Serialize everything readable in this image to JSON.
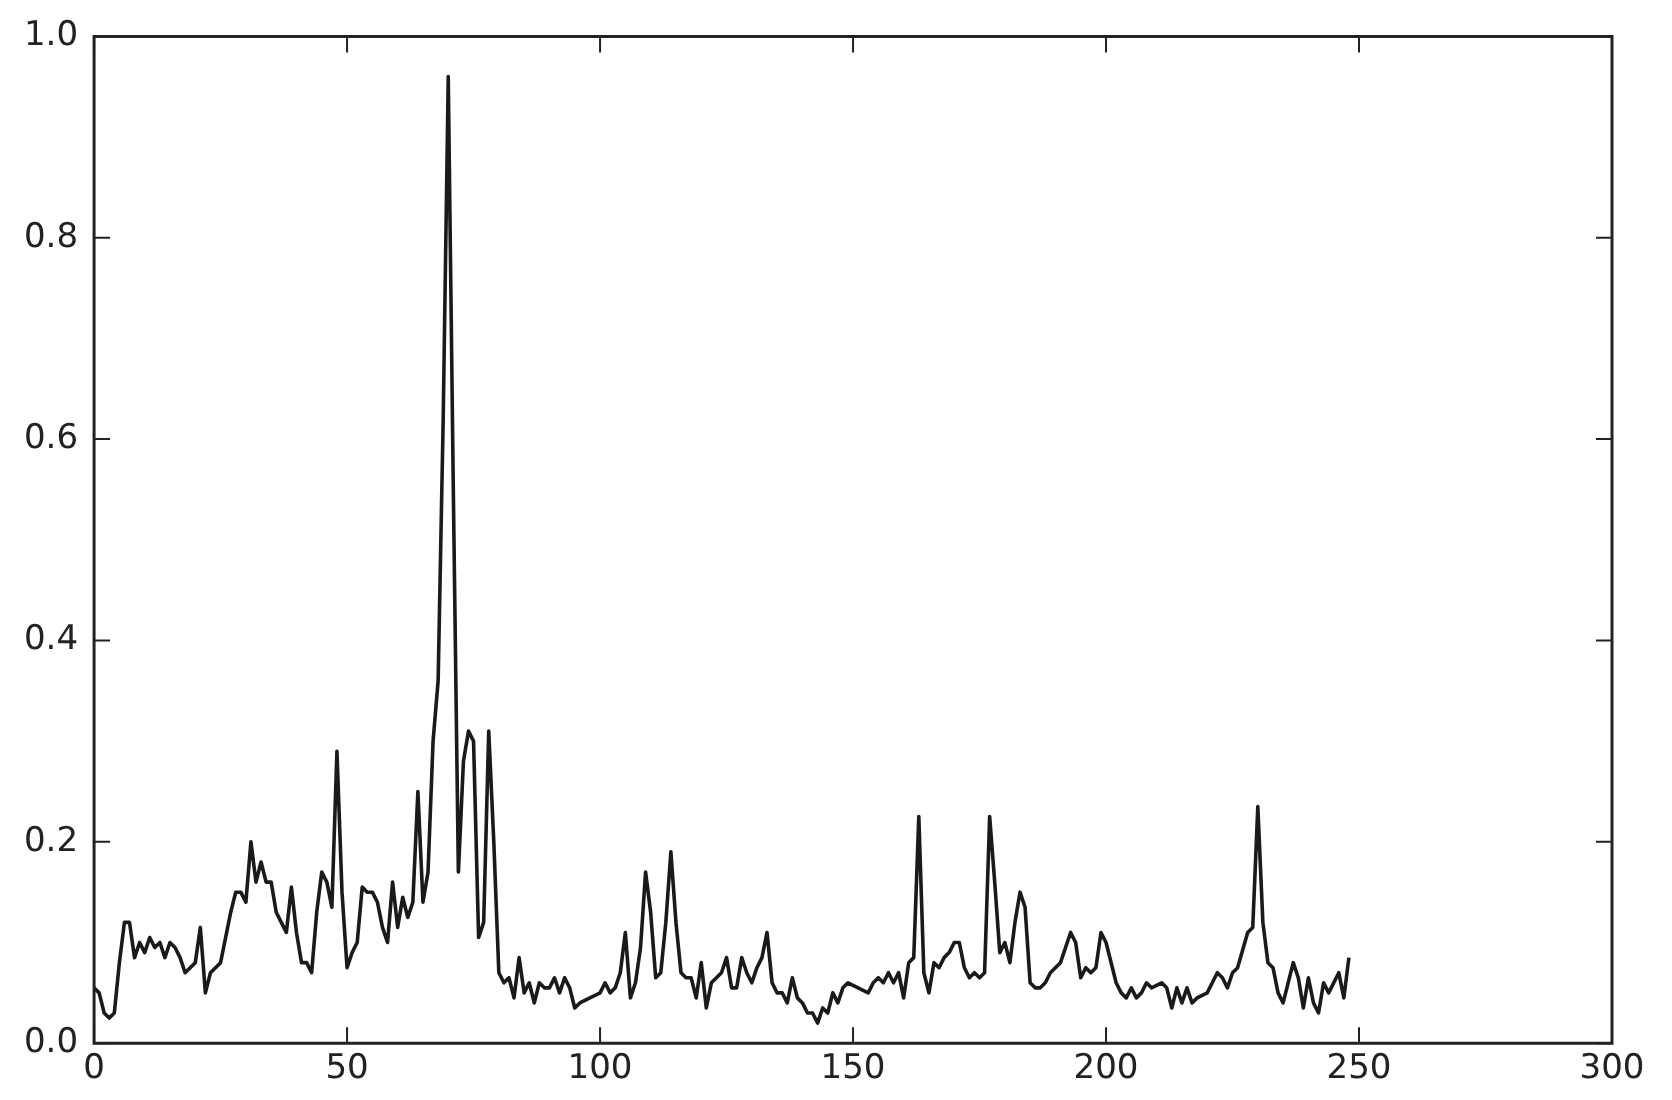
{
  "chart_data": {
    "type": "line",
    "xlim": [
      0,
      300
    ],
    "xticks": [
      0,
      50,
      100,
      150,
      200,
      250,
      300
    ],
    "ylim": [
      0,
      1
    ],
    "yticks": [
      {
        "value": 0,
        "label": "0.0"
      },
      {
        "value": 0.2,
        "label": "0.2"
      },
      {
        "value": 0.4,
        "label": "0.4"
      },
      {
        "value": 0.6,
        "label": "0.6"
      },
      {
        "value": 0.8,
        "label": "0.8"
      },
      {
        "value": 1,
        "label": "1.0"
      }
    ],
    "grid": false,
    "legend": false,
    "marker": "none",
    "line_style": "solid",
    "series": [
      {
        "color": "#1a1a1a",
        "x": [
          0,
          1,
          2,
          3,
          4,
          5,
          6,
          7,
          8,
          9,
          10,
          11,
          12,
          13,
          14,
          15,
          16,
          17,
          18,
          20,
          21,
          22,
          23,
          24,
          25,
          27,
          28,
          29,
          30,
          31,
          32,
          33,
          34,
          35,
          36,
          37,
          38,
          39,
          40,
          41,
          42,
          43,
          44,
          45,
          46,
          47,
          48,
          49,
          50,
          51,
          52,
          53,
          54,
          55,
          56,
          57,
          58,
          59,
          60,
          61,
          62,
          63,
          64,
          65,
          66,
          67,
          68,
          69,
          70,
          71,
          72,
          73,
          74,
          75,
          76,
          77,
          78,
          79,
          80,
          81,
          82,
          83,
          84,
          85,
          86,
          87,
          88,
          89,
          90,
          91,
          92,
          93,
          94,
          95,
          96,
          98,
          100,
          101,
          102,
          103,
          104,
          105,
          106,
          107,
          108,
          109,
          110,
          111,
          112,
          113,
          114,
          115,
          116,
          117,
          118,
          119,
          120,
          121,
          122,
          123,
          124,
          125,
          126,
          127,
          128,
          129,
          130,
          131,
          132,
          133,
          134,
          135,
          136,
          137,
          138,
          139,
          140,
          141,
          142,
          143,
          144,
          145,
          146,
          147,
          148,
          149,
          153,
          154,
          155,
          156,
          157,
          158,
          159,
          160,
          161,
          162,
          163,
          164,
          165,
          166,
          167,
          168,
          169,
          170,
          171,
          172,
          173,
          174,
          175,
          176,
          177,
          178,
          179,
          180,
          181,
          182,
          183,
          184,
          185,
          186,
          187,
          188,
          189,
          190,
          191,
          193,
          194,
          195,
          196,
          197,
          198,
          199,
          200,
          202,
          203,
          204,
          205,
          206,
          207,
          208,
          209,
          211,
          212,
          213,
          214,
          215,
          216,
          217,
          218,
          220,
          221,
          222,
          223,
          224,
          225,
          226,
          228,
          229,
          230,
          231,
          232,
          233,
          234,
          235,
          237,
          238,
          239,
          240,
          241,
          242,
          243,
          244,
          246,
          247,
          248
        ],
        "values": [
          0.055,
          0.05,
          0.03,
          0.025,
          0.03,
          0.08,
          0.12,
          0.12,
          0.085,
          0.1,
          0.09,
          0.105,
          0.095,
          0.1,
          0.085,
          0.1,
          0.095,
          0.085,
          0.07,
          0.08,
          0.115,
          0.05,
          0.07,
          0.075,
          0.08,
          0.13,
          0.15,
          0.15,
          0.14,
          0.2,
          0.16,
          0.18,
          0.16,
          0.16,
          0.13,
          0.12,
          0.11,
          0.155,
          0.11,
          0.08,
          0.08,
          0.07,
          0.13,
          0.17,
          0.16,
          0.135,
          0.29,
          0.15,
          0.075,
          0.09,
          0.1,
          0.155,
          0.15,
          0.15,
          0.14,
          0.115,
          0.1,
          0.16,
          0.115,
          0.145,
          0.125,
          0.14,
          0.25,
          0.14,
          0.17,
          0.3,
          0.36,
          0.62,
          0.96,
          0.55,
          0.17,
          0.28,
          0.31,
          0.3,
          0.105,
          0.12,
          0.31,
          0.2,
          0.07,
          0.06,
          0.065,
          0.045,
          0.085,
          0.05,
          0.06,
          0.04,
          0.06,
          0.055,
          0.055,
          0.065,
          0.05,
          0.065,
          0.055,
          0.035,
          0.04,
          0.045,
          0.05,
          0.06,
          0.05,
          0.055,
          0.07,
          0.11,
          0.045,
          0.06,
          0.095,
          0.17,
          0.13,
          0.065,
          0.07,
          0.12,
          0.19,
          0.12,
          0.07,
          0.065,
          0.065,
          0.045,
          0.08,
          0.035,
          0.06,
          0.065,
          0.07,
          0.085,
          0.055,
          0.055,
          0.085,
          0.07,
          0.06,
          0.075,
          0.085,
          0.11,
          0.06,
          0.05,
          0.05,
          0.04,
          0.065,
          0.045,
          0.04,
          0.03,
          0.03,
          0.02,
          0.035,
          0.03,
          0.05,
          0.04,
          0.055,
          0.06,
          0.05,
          0.06,
          0.065,
          0.06,
          0.07,
          0.06,
          0.07,
          0.045,
          0.08,
          0.085,
          0.225,
          0.07,
          0.05,
          0.08,
          0.075,
          0.085,
          0.09,
          0.1,
          0.1,
          0.075,
          0.065,
          0.07,
          0.065,
          0.07,
          0.225,
          0.16,
          0.09,
          0.1,
          0.08,
          0.12,
          0.15,
          0.135,
          0.06,
          0.055,
          0.055,
          0.06,
          0.07,
          0.075,
          0.08,
          0.11,
          0.1,
          0.065,
          0.075,
          0.07,
          0.075,
          0.11,
          0.1,
          0.06,
          0.05,
          0.045,
          0.055,
          0.045,
          0.05,
          0.06,
          0.055,
          0.06,
          0.055,
          0.035,
          0.055,
          0.04,
          0.055,
          0.04,
          0.045,
          0.05,
          0.06,
          0.07,
          0.065,
          0.055,
          0.07,
          0.075,
          0.11,
          0.115,
          0.235,
          0.12,
          0.08,
          0.075,
          0.05,
          0.04,
          0.08,
          0.065,
          0.035,
          0.065,
          0.04,
          0.03,
          0.06,
          0.05,
          0.07,
          0.045,
          0.085
        ]
      }
    ]
  }
}
